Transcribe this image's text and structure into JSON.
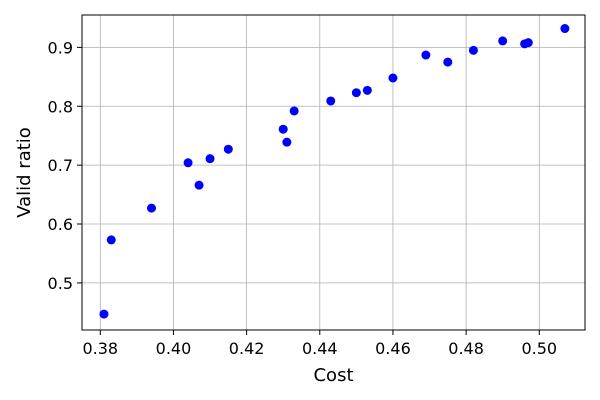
{
  "chart_data": {
    "type": "scatter",
    "xlabel": "Cost",
    "ylabel": "Valid ratio",
    "xlim": [
      0.375,
      0.5125
    ],
    "ylim": [
      0.42,
      0.955
    ],
    "xticks": [
      0.38,
      0.4,
      0.42,
      0.44,
      0.46,
      0.48,
      0.5
    ],
    "xtick_labels": [
      "0.38",
      "0.40",
      "0.42",
      "0.44",
      "0.46",
      "0.48",
      "0.50"
    ],
    "yticks": [
      0.5,
      0.6,
      0.7,
      0.8,
      0.9
    ],
    "ytick_labels": [
      "0.5",
      "0.6",
      "0.7",
      "0.8",
      "0.9"
    ],
    "grid": true,
    "marker_color": "#0000ff",
    "points": [
      {
        "x": 0.381,
        "y": 0.447
      },
      {
        "x": 0.383,
        "y": 0.573
      },
      {
        "x": 0.394,
        "y": 0.627
      },
      {
        "x": 0.404,
        "y": 0.704
      },
      {
        "x": 0.407,
        "y": 0.666
      },
      {
        "x": 0.41,
        "y": 0.711
      },
      {
        "x": 0.415,
        "y": 0.727
      },
      {
        "x": 0.43,
        "y": 0.761
      },
      {
        "x": 0.431,
        "y": 0.739
      },
      {
        "x": 0.433,
        "y": 0.792
      },
      {
        "x": 0.443,
        "y": 0.809
      },
      {
        "x": 0.45,
        "y": 0.823
      },
      {
        "x": 0.453,
        "y": 0.827
      },
      {
        "x": 0.46,
        "y": 0.848
      },
      {
        "x": 0.469,
        "y": 0.887
      },
      {
        "x": 0.475,
        "y": 0.875
      },
      {
        "x": 0.482,
        "y": 0.895
      },
      {
        "x": 0.49,
        "y": 0.911
      },
      {
        "x": 0.496,
        "y": 0.906
      },
      {
        "x": 0.497,
        "y": 0.908
      },
      {
        "x": 0.507,
        "y": 0.932
      }
    ]
  }
}
